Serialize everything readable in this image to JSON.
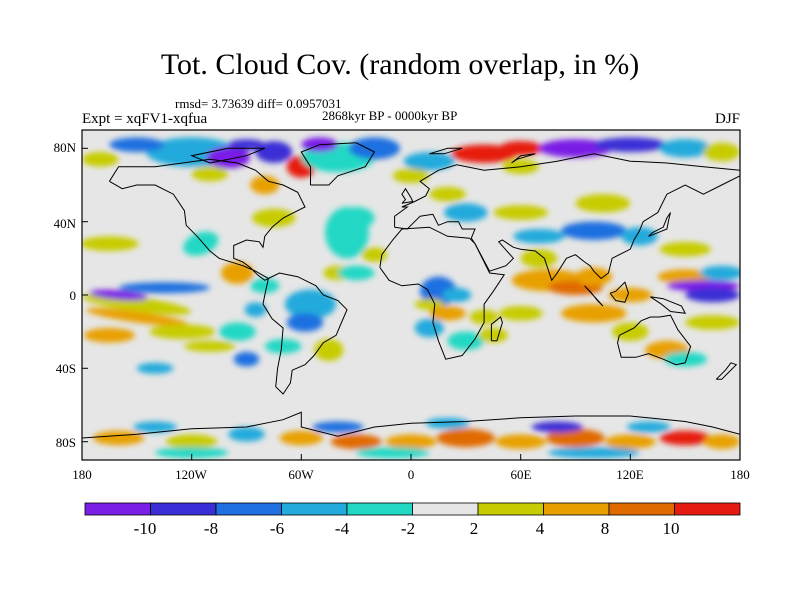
{
  "title": "Tot. Cloud Cov. (random overlap, in %)",
  "stats": "rmsd= 3.73639 diff= 0.0957031",
  "period": "2868kyr BP - 0000kyr BP",
  "experiment": "Expt = xqFV1-xqfua",
  "season": "DJF",
  "lat_ticks": [
    "80N",
    "40N",
    "0",
    "40S",
    "80S"
  ],
  "lon_ticks": [
    "180",
    "120W",
    "60W",
    "0",
    "60E",
    "120E",
    "180"
  ],
  "colorbar": {
    "labels": [
      "-10",
      "-8",
      "-6",
      "-4",
      "-2",
      "2",
      "4",
      "8",
      "10"
    ],
    "colors": [
      "#7a1fe6",
      "#3a2fd6",
      "#1f6fe0",
      "#22aadc",
      "#20d8c4",
      "#e6e6e6",
      "#c7cc00",
      "#e8a000",
      "#e06a00",
      "#e61a10"
    ]
  }
}
